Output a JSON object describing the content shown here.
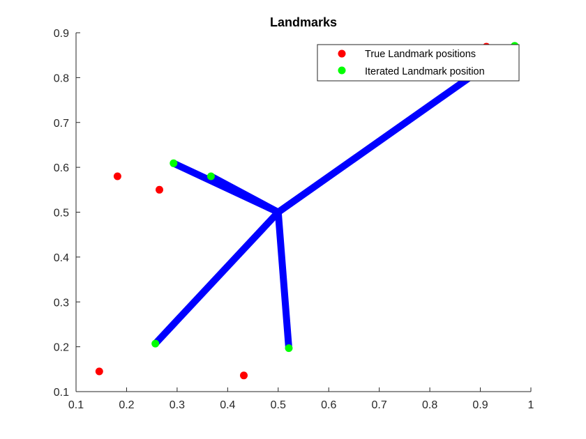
{
  "chart_data": {
    "type": "scatter",
    "title": "Landmarks",
    "xlabel": "",
    "ylabel": "",
    "xlim": [
      0.1,
      1.0
    ],
    "ylim": [
      0.1,
      0.9
    ],
    "xticks": [
      "0.1",
      "0.2",
      "0.3",
      "0.4",
      "0.5",
      "0.6",
      "0.7",
      "0.8",
      "0.9",
      "1"
    ],
    "yticks": [
      "0.1",
      "0.2",
      "0.3",
      "0.4",
      "0.5",
      "0.6",
      "0.7",
      "0.8",
      "0.9"
    ],
    "grid": false,
    "legend_location": "top-right",
    "series": [
      {
        "name": "True Landmark positions",
        "marker": "circle",
        "color": "#ff0000",
        "points": [
          {
            "x": 0.182,
            "y": 0.58
          },
          {
            "x": 0.265,
            "y": 0.55
          },
          {
            "x": 0.146,
            "y": 0.145
          },
          {
            "x": 0.432,
            "y": 0.136
          },
          {
            "x": 0.912,
            "y": 0.869
          }
        ]
      },
      {
        "name": "Iterated Landmark position",
        "marker": "circle",
        "color": "#00ff00",
        "points": [
          {
            "x": 0.293,
            "y": 0.609
          },
          {
            "x": 0.367,
            "y": 0.58
          },
          {
            "x": 0.257,
            "y": 0.207
          },
          {
            "x": 0.521,
            "y": 0.197
          },
          {
            "x": 0.968,
            "y": 0.871
          }
        ]
      }
    ],
    "trajectories": {
      "color": "#0000ff",
      "lines": [
        [
          [
            0.5,
            0.5
          ],
          [
            0.293,
            0.609
          ]
        ],
        [
          [
            0.5,
            0.5
          ],
          [
            0.367,
            0.58
          ]
        ],
        [
          [
            0.5,
            0.5
          ],
          [
            0.257,
            0.207
          ]
        ],
        [
          [
            0.5,
            0.5
          ],
          [
            0.521,
            0.197
          ]
        ],
        [
          [
            0.5,
            0.5
          ],
          [
            0.968,
            0.871
          ]
        ]
      ]
    }
  }
}
